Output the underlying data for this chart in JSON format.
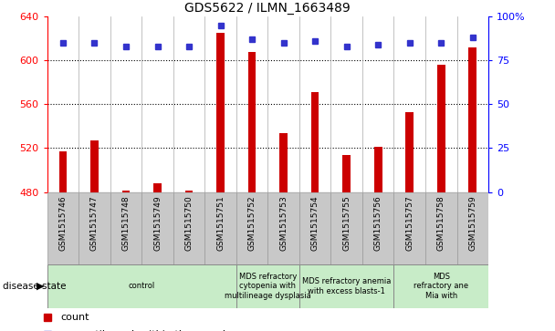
{
  "title": "GDS5622 / ILMN_1663489",
  "samples": [
    "GSM1515746",
    "GSM1515747",
    "GSM1515748",
    "GSM1515749",
    "GSM1515750",
    "GSM1515751",
    "GSM1515752",
    "GSM1515753",
    "GSM1515754",
    "GSM1515755",
    "GSM1515756",
    "GSM1515757",
    "GSM1515758",
    "GSM1515759"
  ],
  "counts": [
    517,
    527,
    481,
    488,
    481,
    625,
    608,
    534,
    571,
    514,
    521,
    553,
    596,
    612
  ],
  "percentile_ranks": [
    85,
    85,
    83,
    83,
    83,
    95,
    87,
    85,
    86,
    83,
    84,
    85,
    85,
    88
  ],
  "ylim_left": [
    480,
    640
  ],
  "ylim_right": [
    0,
    100
  ],
  "yticks_left": [
    480,
    520,
    560,
    600,
    640
  ],
  "yticks_right": [
    0,
    25,
    50,
    75,
    100
  ],
  "bar_color": "#cc0000",
  "dot_color": "#3333cc",
  "bar_base": 480,
  "groups": [
    {
      "label": "control",
      "start": 0,
      "end": 6
    },
    {
      "label": "MDS refractory\ncytopenia with\nmultilineage dysplasia",
      "start": 6,
      "end": 8
    },
    {
      "label": "MDS refractory anemia\nwith excess blasts-1",
      "start": 8,
      "end": 11
    },
    {
      "label": "MDS\nrefractory ane\nMia with",
      "start": 11,
      "end": 14
    }
  ],
  "group_color": "#c8ecc8",
  "tick_bg_color": "#c8c8c8",
  "disease_state_label": "disease state",
  "background_color": "#ffffff",
  "figure_width": 6.08,
  "figure_height": 3.63,
  "dpi": 100
}
